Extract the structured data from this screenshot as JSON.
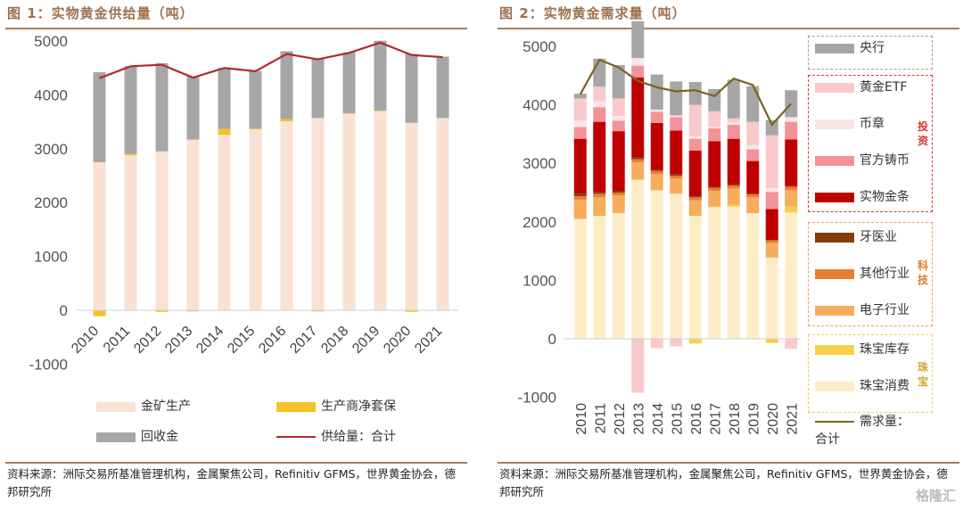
{
  "panel1": {
    "title": "图 1：实物黄金供给量（吨）",
    "source": "资料来源：洲际交易所基准管理机构，金属聚焦公司，Refinitiv GFMS，世界黄金协会，德邦研究所"
  },
  "panel2": {
    "title": "图 2：实物黄金需求量（吨）",
    "source": "资料来源：洲际交易所基准管理机构，金属聚焦公司，Refinitiv GFMS，世界黄金协会，德邦研究所",
    "group_labels": {
      "investment": "投资",
      "technology": "科技",
      "jewelry": "珠宝"
    }
  },
  "watermark": "格隆汇",
  "chart_data": [
    {
      "type": "bar",
      "stacked": true,
      "title": "实物黄金供给量（吨）",
      "xlabel": "",
      "ylabel": "",
      "ylim": [
        -1000,
        5000
      ],
      "yticks": [
        -1000,
        0,
        1000,
        2000,
        3000,
        4000,
        5000
      ],
      "categories": [
        "2010",
        "2011",
        "2012",
        "2013",
        "2014",
        "2015",
        "2016",
        "2017",
        "2018",
        "2019",
        "2020",
        "2021"
      ],
      "series": [
        {
          "name": "金矿生产",
          "color": "#f9e2d3",
          "values": [
            2750,
            2880,
            2950,
            3170,
            3260,
            3360,
            3510,
            3570,
            3650,
            3700,
            3480,
            3570
          ]
        },
        {
          "name": "生产商净套保",
          "color": "#f5c227",
          "values": [
            -110,
            25,
            -30,
            -20,
            110,
            15,
            40,
            -20,
            10,
            5,
            -30,
            -10
          ]
        },
        {
          "name": "回收金",
          "color": "#a6a6a6",
          "values": [
            1670,
            1630,
            1640,
            1170,
            1130,
            1070,
            1260,
            1110,
            1130,
            1300,
            1280,
            1140
          ]
        }
      ],
      "line": {
        "name": "供给量：合计",
        "color": "#b22a2e",
        "values": [
          4310,
          4530,
          4560,
          4320,
          4500,
          4440,
          4760,
          4660,
          4780,
          4970,
          4740,
          4700
        ]
      },
      "legend": {
        "position": "bottom",
        "entries": [
          "金矿生产",
          "生产商净套保",
          "回收金",
          "供给量：合计"
        ]
      },
      "grid": false
    },
    {
      "type": "bar",
      "stacked": true,
      "title": "实物黄金需求量（吨）",
      "xlabel": "",
      "ylabel": "",
      "ylim": [
        -1000,
        5000
      ],
      "yticks": [
        -1000,
        0,
        1000,
        2000,
        3000,
        4000,
        5000
      ],
      "categories": [
        "2010",
        "2011",
        "2012",
        "2013",
        "2014",
        "2015",
        "2016",
        "2017",
        "2018",
        "2019",
        "2020",
        "2021"
      ],
      "series": [
        {
          "name": "珠宝消费",
          "color": "#fdeec9",
          "values": [
            2050,
            2100,
            2150,
            2720,
            2540,
            2480,
            2100,
            2250,
            2260,
            2150,
            1390,
            2160
          ]
        },
        {
          "name": "珠宝库存",
          "color": "#f7cf4b",
          "values": [
            0,
            0,
            0,
            0,
            0,
            0,
            -80,
            10,
            30,
            0,
            -70,
            100
          ]
        },
        {
          "name": "电子行业",
          "color": "#f6ad5c",
          "values": [
            330,
            320,
            300,
            300,
            280,
            260,
            270,
            270,
            280,
            270,
            250,
            280
          ]
        },
        {
          "name": "其他行业",
          "color": "#e87d34",
          "values": [
            60,
            60,
            50,
            50,
            50,
            50,
            50,
            50,
            50,
            50,
            40,
            60
          ]
        },
        {
          "name": "牙医业",
          "color": "#843c0c",
          "values": [
            40,
            30,
            30,
            30,
            20,
            20,
            20,
            20,
            20,
            10,
            10,
            10
          ]
        },
        {
          "name": "实物金条",
          "color": "#c00000",
          "values": [
            940,
            1200,
            1020,
            1370,
            800,
            750,
            780,
            780,
            780,
            560,
            530,
            800
          ]
        },
        {
          "name": "官方铸币",
          "color": "#f4929a",
          "values": [
            200,
            250,
            180,
            200,
            190,
            230,
            200,
            220,
            240,
            200,
            290,
            300
          ]
        },
        {
          "name": "币章",
          "color": "#fbe5e6",
          "values": [
            110,
            100,
            80,
            130,
            40,
            30,
            40,
            20,
            40,
            70,
            70,
            80
          ]
        },
        {
          "name": "黄金ETF",
          "color": "#f9c9cb",
          "values": [
            380,
            250,
            300,
            -920,
            -160,
            -130,
            540,
            270,
            70,
            400,
            900,
            -170
          ]
        },
        {
          "name": "央行",
          "color": "#a6a6a6",
          "values": [
            80,
            480,
            570,
            630,
            600,
            580,
            390,
            380,
            660,
            610,
            260,
            460
          ]
        }
      ],
      "line": {
        "name": "需求量：合计",
        "color": "#7a6320",
        "values": [
          4180,
          4770,
          4640,
          4410,
          4300,
          4230,
          4250,
          4150,
          4450,
          4340,
          3660,
          4020
        ]
      },
      "legend": {
        "position": "right",
        "groups": [
          {
            "label": "",
            "entries": [
              "央行"
            ]
          },
          {
            "label": "投资",
            "entries": [
              "黄金ETF",
              "币章",
              "官方铸币",
              "实物金条"
            ]
          },
          {
            "label": "科技",
            "entries": [
              "牙医业",
              "其他行业",
              "电子行业"
            ]
          },
          {
            "label": "珠宝",
            "entries": [
              "珠宝库存",
              "珠宝消费"
            ]
          },
          {
            "label": "",
            "entries": [
              "需求量：合计"
            ]
          }
        ]
      },
      "grid": false
    }
  ]
}
